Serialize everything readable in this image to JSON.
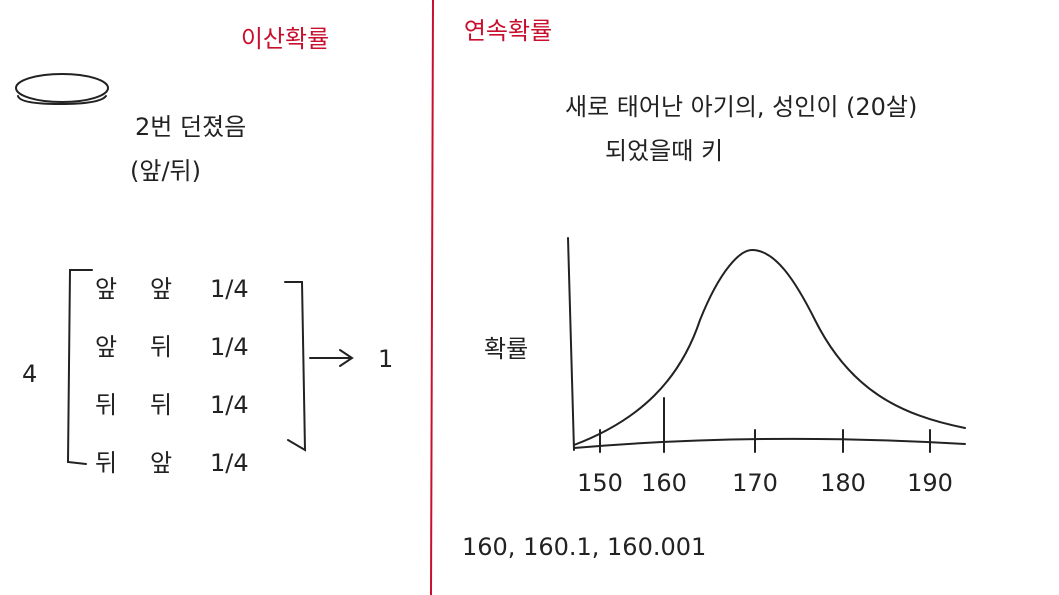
{
  "left": {
    "title": "이산확률",
    "note": [
      "2번 던졌음",
      "(앞/뒤)"
    ],
    "multiplier": "4",
    "rows": [
      [
        "앞",
        "앞",
        "1/4"
      ],
      [
        "앞",
        "뒤",
        "1/4"
      ],
      [
        "뒤",
        "뒤",
        "1/4"
      ],
      [
        "뒤",
        "앞",
        "1/4"
      ]
    ],
    "result": "1"
  },
  "right": {
    "title": "연속확률",
    "note": [
      "새로 태어난 아기의, 성인이 (20살)",
      "되었을때 키"
    ],
    "y_label": "확률",
    "x_ticks": [
      "150",
      "160",
      "170",
      "180",
      "190"
    ],
    "examples": "160, 160.1, 160.001"
  }
}
